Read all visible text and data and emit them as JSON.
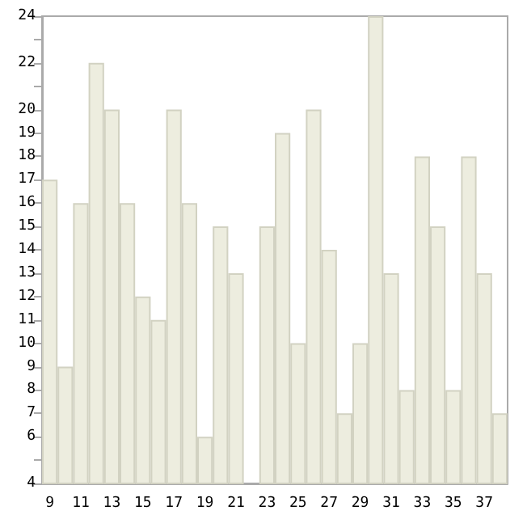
{
  "chart_data": {
    "type": "bar",
    "categories": [
      "9",
      null,
      "11",
      null,
      "13",
      null,
      "15",
      null,
      "17",
      null,
      "19",
      null,
      "21",
      null,
      "23",
      null,
      "25",
      null,
      "27",
      null,
      "29",
      null,
      "31",
      null,
      "33",
      null,
      "35",
      null,
      "37",
      null
    ],
    "values": [
      17,
      9,
      16,
      22,
      20,
      16,
      12,
      11,
      20,
      16,
      6,
      15,
      13,
      4,
      15,
      19,
      10,
      20,
      14,
      7,
      10,
      24,
      13,
      8,
      18,
      15,
      8,
      18,
      13,
      7
    ],
    "color": "#ededdf",
    "ylim": [
      4,
      24
    ],
    "yticks": [
      4,
      {
        "value": 5,
        "label": null
      },
      6,
      7,
      8,
      9,
      10,
      11,
      12,
      13,
      14,
      15,
      16,
      17,
      18,
      19,
      20,
      {
        "value": 21,
        "label": null
      },
      22,
      {
        "value": 23,
        "label": null
      },
      24
    ],
    "grid": false
  }
}
